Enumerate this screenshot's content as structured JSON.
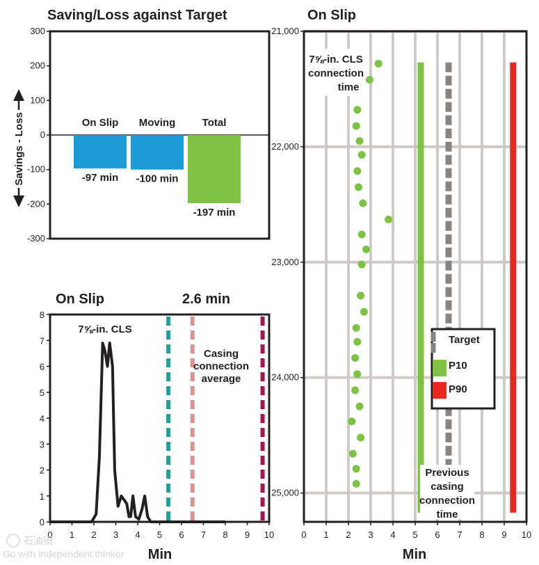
{
  "colors": {
    "blue": "#1b9bd7",
    "green": "#7dc242",
    "red": "#e8281f",
    "target_gray": "#8a8480",
    "teal": "#1aa59a",
    "pink": "#d9938f",
    "maroon": "#a3154f",
    "grid": "#cfcac6",
    "axis": "#231f20"
  },
  "watermark": {
    "logo_text": "石油圈",
    "tagline": "Go with independent thinker"
  },
  "chart_data": [
    {
      "type": "bar",
      "title": "Saving/Loss against Target",
      "ylabel_top": "Savings",
      "ylabel_sep": "-",
      "ylabel_bottom": "Loss",
      "ylim": [
        -300,
        300
      ],
      "yticks": [
        -300,
        -200,
        -100,
        0,
        100,
        200,
        300
      ],
      "grid": false,
      "categories": [
        "On Slip",
        "Moving",
        "Total"
      ],
      "values": [
        -97,
        -100,
        -197
      ],
      "value_labels": [
        "-97 min",
        "-100 min",
        "-197 min"
      ],
      "bar_colors": [
        "#1b9bd7",
        "#1b9bd7",
        "#7dc242"
      ]
    },
    {
      "type": "line",
      "title": "On Slip",
      "title_right": "2.6 min",
      "xlabel": "Min",
      "xlim": [
        0,
        10
      ],
      "ylim": [
        0,
        8
      ],
      "xticks": [
        0,
        1,
        2,
        3,
        4,
        5,
        6,
        7,
        8,
        9,
        10
      ],
      "yticks": [
        0,
        1,
        2,
        3,
        4,
        5,
        6,
        7,
        8
      ],
      "grid": false,
      "series": [
        {
          "name": "7⅝-in. CLS",
          "x": [
            0,
            1,
            1.9,
            2.1,
            2.25,
            2.4,
            2.5,
            2.62,
            2.72,
            2.85,
            2.95,
            3.1,
            3.25,
            3.5,
            3.6,
            3.68,
            3.78,
            3.9,
            4.05,
            4.2,
            4.32,
            4.45,
            4.6,
            5,
            6,
            7,
            8
          ],
          "y": [
            0,
            0,
            0,
            0.3,
            2.5,
            6.9,
            6.6,
            6.0,
            6.9,
            6.0,
            2.0,
            0.6,
            1.0,
            0.7,
            0.2,
            0.2,
            1.0,
            0.2,
            0.1,
            0.5,
            1.0,
            0.2,
            0,
            0,
            0,
            0,
            0
          ]
        }
      ],
      "reference_lines": [
        {
          "x": 5.4,
          "color": "#1aa59a"
        },
        {
          "x": 6.5,
          "color": "#d9938f"
        },
        {
          "x": 9.7,
          "color": "#a3154f"
        }
      ],
      "annotation_lines": [
        "Casing",
        "connection",
        "average"
      ]
    },
    {
      "type": "scatter",
      "title": "On Slip",
      "xlabel": "Min",
      "xlim": [
        0,
        10
      ],
      "ylim": [
        21000,
        25250
      ],
      "y_inverted": true,
      "xticks": [
        0,
        1,
        2,
        3,
        4,
        5,
        6,
        7,
        8,
        9,
        10
      ],
      "yticks": [
        "21,000",
        "22,000",
        "23,000",
        "24,000",
        "25,000"
      ],
      "ytick_values": [
        21000,
        22000,
        23000,
        24000,
        25000
      ],
      "grid": true,
      "legend_position": "right",
      "series": [
        {
          "name": "7⅝-in. CLS connection time",
          "points": [
            [
              3.35,
              21280
            ],
            [
              2.95,
              21420
            ],
            [
              2.4,
              21680
            ],
            [
              2.35,
              21820
            ],
            [
              2.5,
              21950
            ],
            [
              2.6,
              22070
            ],
            [
              2.4,
              22210
            ],
            [
              2.45,
              22350
            ],
            [
              2.65,
              22490
            ],
            [
              3.8,
              22630
            ],
            [
              2.6,
              22760
            ],
            [
              2.8,
              22890
            ],
            [
              2.6,
              23020
            ],
            [
              2.55,
              23290
            ],
            [
              2.7,
              23430
            ],
            [
              2.35,
              23570
            ],
            [
              2.4,
              23690
            ],
            [
              2.3,
              23830
            ],
            [
              2.4,
              23970
            ],
            [
              2.3,
              24110
            ],
            [
              2.5,
              24250
            ],
            [
              2.15,
              24380
            ],
            [
              2.55,
              24520
            ],
            [
              2.2,
              24660
            ],
            [
              2.35,
              24790
            ],
            [
              2.35,
              24920
            ]
          ]
        },
        {
          "name": "Target",
          "x": 6.5,
          "y_range": [
            21270,
            25170
          ],
          "color": "#8a8480"
        },
        {
          "name": "P10",
          "x": 5.25,
          "y_range": [
            21270,
            25170
          ],
          "color": "#7dc242"
        },
        {
          "name": "P90",
          "x": 9.4,
          "y_range": [
            21270,
            25170
          ],
          "color": "#e8281f"
        }
      ],
      "legend": [
        "Target",
        "P10",
        "P90"
      ],
      "annotation_left": [
        "7⅝-in. CLS",
        "connection",
        "time"
      ],
      "annotation_bottom": [
        "Previous",
        "casing",
        "connection",
        "time"
      ]
    }
  ]
}
